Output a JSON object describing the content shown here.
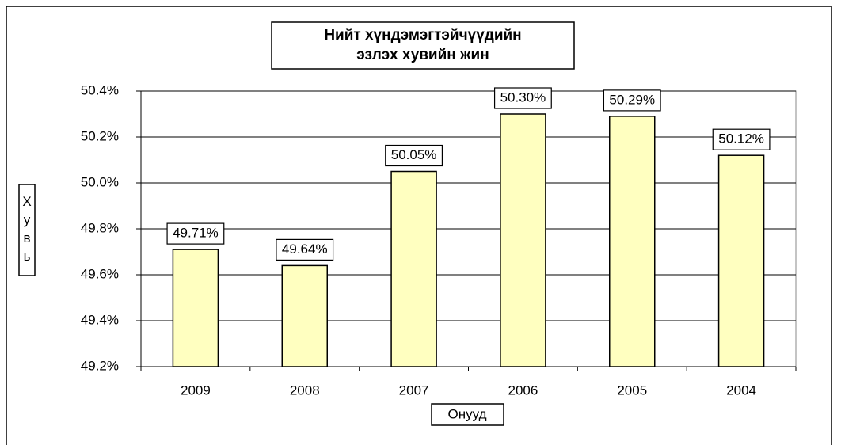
{
  "chart_data": {
    "type": "bar",
    "title": [
      "Нийт хүндэмэгтэйчүүдийн",
      "эзлэх хувийн жин"
    ],
    "y_label": "Хувь",
    "x_label": "Онууд",
    "categories": [
      "2009",
      "2008",
      "2007",
      "2006",
      "2005",
      "2004"
    ],
    "values": [
      49.71,
      49.64,
      50.05,
      50.3,
      50.29,
      50.12
    ],
    "value_labels": [
      "49.71%",
      "49.64%",
      "50.05%",
      "50.30%",
      "50.29%",
      "50.12%"
    ],
    "color": "#ffffc0",
    "ylim": [
      49.2,
      50.4
    ],
    "yticks": [
      {
        "value": 49.2,
        "label": "49.2%"
      },
      {
        "value": 49.4,
        "label": "49.4%"
      },
      {
        "value": 49.6,
        "label": "49.6%"
      },
      {
        "value": 49.8,
        "label": "49.8%"
      },
      {
        "value": 50.0,
        "label": "50.0%"
      },
      {
        "value": 50.2,
        "label": "50.2%"
      },
      {
        "value": 50.4,
        "label": "50.4%"
      }
    ],
    "grid": true
  }
}
